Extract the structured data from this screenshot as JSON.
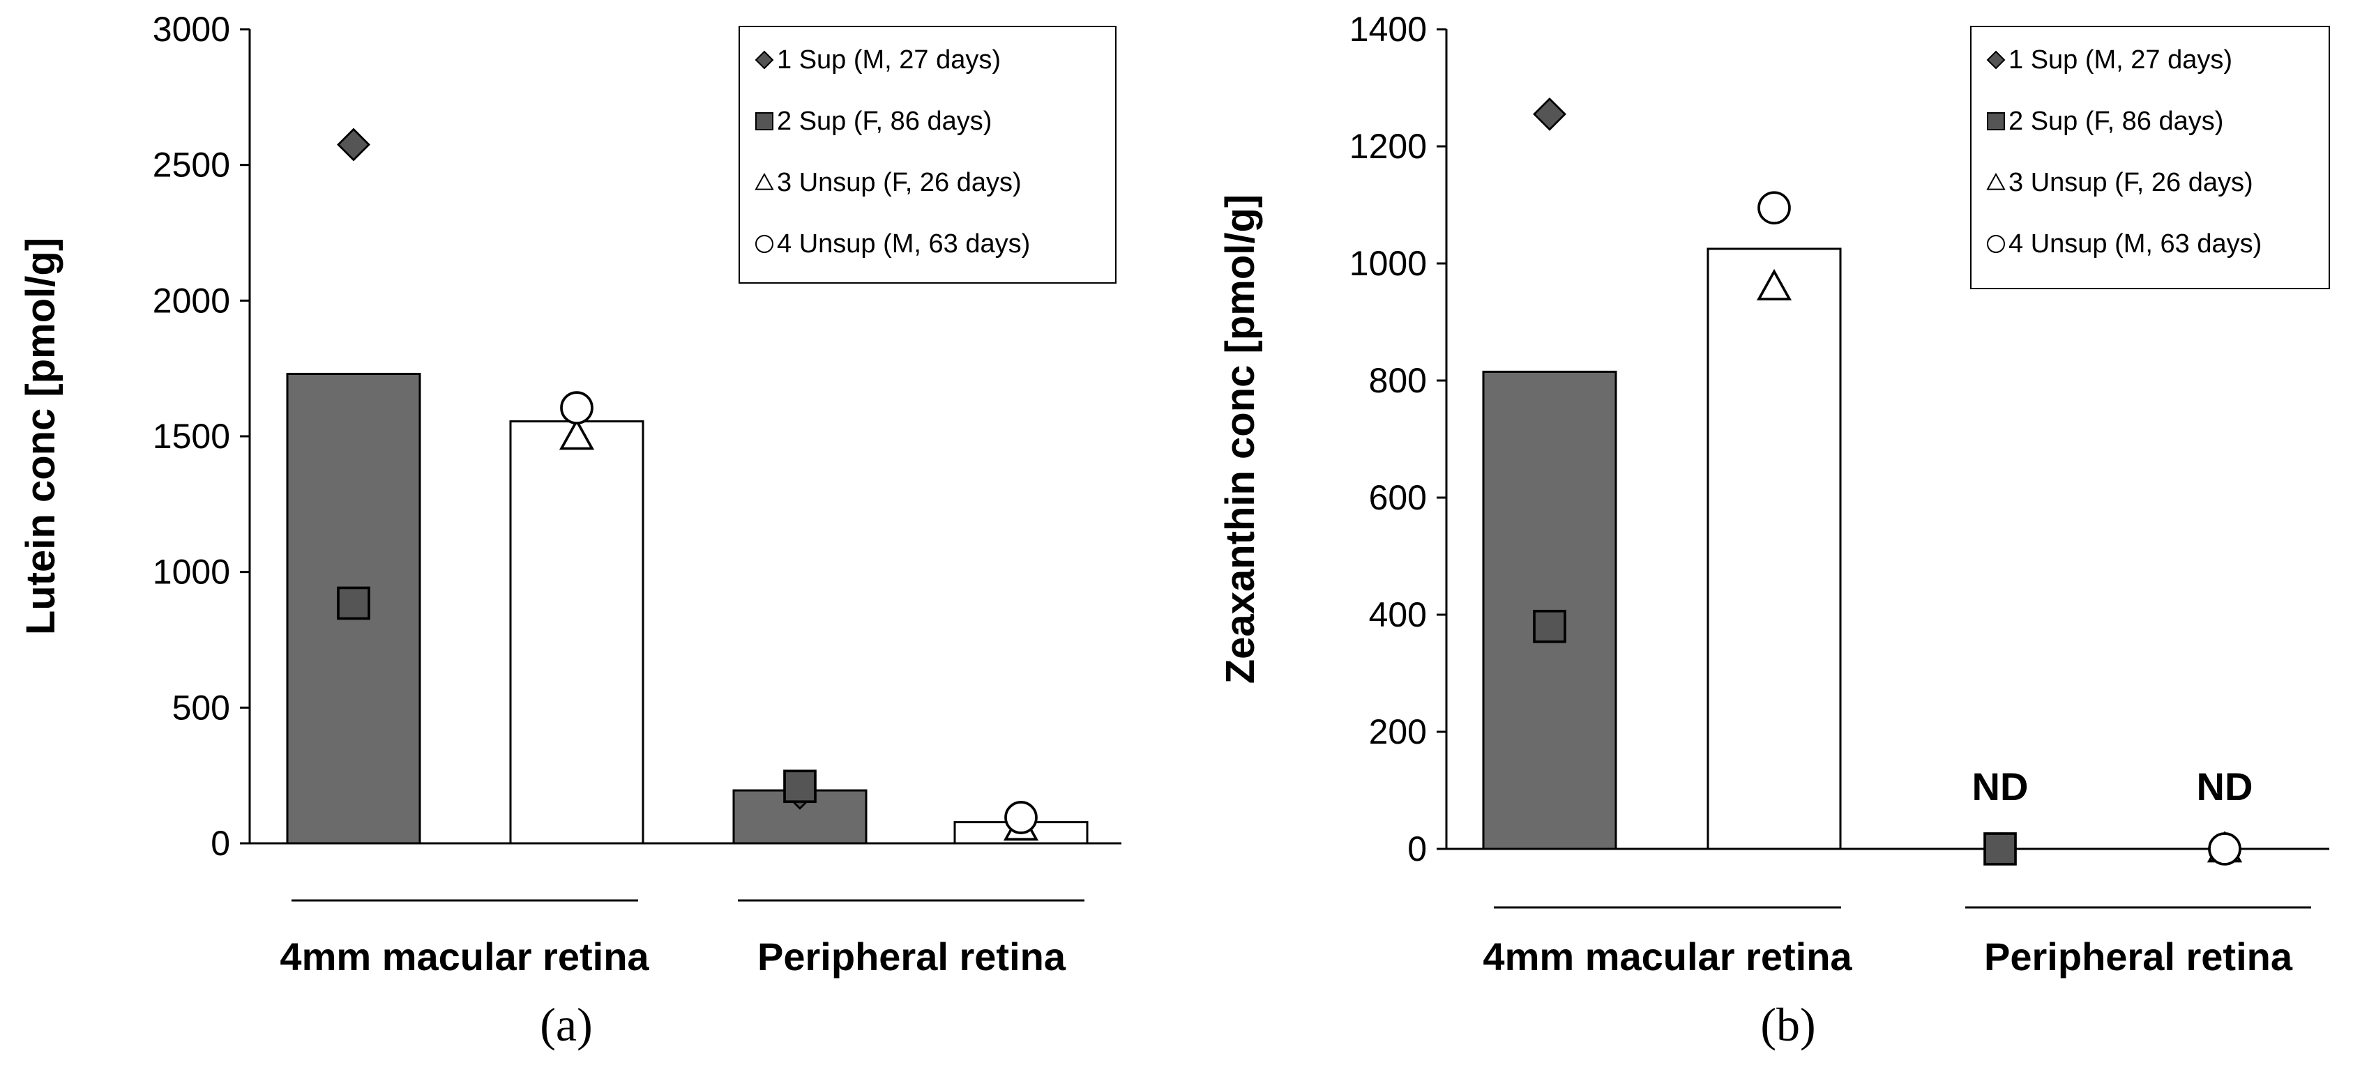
{
  "chart_data": [
    {
      "type": "bar",
      "panel_label": "(a)",
      "ylabel": "Lutein conc [pmol/g]",
      "ylim": [
        0,
        3000
      ],
      "yticks": [
        0,
        500,
        1000,
        1500,
        2000,
        2500,
        3000
      ],
      "groups": [
        "4mm macular retina",
        "Peripheral retina"
      ],
      "bars": [
        {
          "group": "4mm macular retina",
          "treatment": "Sup",
          "value": 1730
        },
        {
          "group": "4mm macular retina",
          "treatment": "Unsup",
          "value": 1555
        },
        {
          "group": "Peripheral retina",
          "treatment": "Sup",
          "value": 195
        },
        {
          "group": "Peripheral retina",
          "treatment": "Unsup",
          "value": 78
        }
      ],
      "points": [
        {
          "bar": 0,
          "subject": 1,
          "value": 2575
        },
        {
          "bar": 0,
          "subject": 2,
          "value": 885
        },
        {
          "bar": 1,
          "subject": 3,
          "value": 1500
        },
        {
          "bar": 1,
          "subject": 4,
          "value": 1605
        },
        {
          "bar": 2,
          "subject": 1,
          "value": 185
        },
        {
          "bar": 2,
          "subject": 2,
          "value": 210
        },
        {
          "bar": 3,
          "subject": 3,
          "value": 60
        },
        {
          "bar": 3,
          "subject": 4,
          "value": 95
        }
      ],
      "nd_labels": [],
      "legend": [
        {
          "marker": "diamond",
          "label": "1  Sup (M, 27 days)"
        },
        {
          "marker": "square",
          "label": "2  Sup (F,  86 days)"
        },
        {
          "marker": "triangle",
          "label": "3  Unsup (F,  26 days)"
        },
        {
          "marker": "circle",
          "label": "4  Unsup (M, 63 days)"
        }
      ]
    },
    {
      "type": "bar",
      "panel_label": "(b)",
      "ylabel": "Zeaxanthin conc [pmol/g]",
      "ylim": [
        0,
        1400
      ],
      "yticks": [
        0,
        200,
        400,
        600,
        800,
        1000,
        1200,
        1400
      ],
      "groups": [
        "4mm macular retina",
        "Peripheral retina"
      ],
      "bars": [
        {
          "group": "4mm macular retina",
          "treatment": "Sup",
          "value": 815
        },
        {
          "group": "4mm macular retina",
          "treatment": "Unsup",
          "value": 1025
        }
      ],
      "points": [
        {
          "bar": 0,
          "subject": 1,
          "value": 1255
        },
        {
          "bar": 0,
          "subject": 2,
          "value": 380
        },
        {
          "bar": 1,
          "subject": 3,
          "value": 960
        },
        {
          "bar": 1,
          "subject": 4,
          "value": 1095
        },
        {
          "bar": 2,
          "subject": 1,
          "value": 0
        },
        {
          "bar": 2,
          "subject": 2,
          "value": 0
        },
        {
          "bar": 3,
          "subject": 3,
          "value": 0
        },
        {
          "bar": 3,
          "subject": 4,
          "value": 0
        }
      ],
      "nd_labels": [
        {
          "bar": 2,
          "text": "ND"
        },
        {
          "bar": 3,
          "text": "ND"
        }
      ],
      "legend": [
        {
          "marker": "diamond",
          "label": "1  Sup (M, 27 days)"
        },
        {
          "marker": "square",
          "label": "2  Sup (F,  86 days)"
        },
        {
          "marker": "triangle",
          "label": "3  Unsup (F,  26 days)"
        },
        {
          "marker": "circle",
          "label": "4  Unsup (M, 63 days)"
        }
      ]
    }
  ],
  "colors": {
    "sup_bar": "#6b6b6b",
    "unsup_bar": "#ffffff",
    "diamond": "#555555",
    "square": "#555555",
    "outline": "#000000"
  }
}
